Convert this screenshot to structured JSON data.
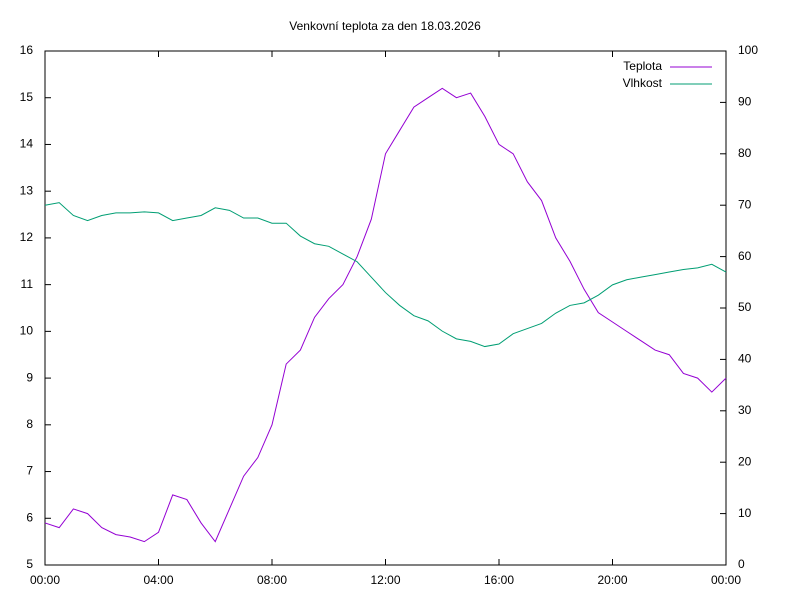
{
  "chart_data": {
    "type": "line",
    "title": "Venkovní teplota za den 18.03.2026",
    "x": [
      0,
      0.5,
      1,
      1.5,
      2,
      2.5,
      3,
      3.5,
      4,
      4.5,
      5,
      5.5,
      6,
      6.5,
      7,
      7.5,
      8,
      8.5,
      9,
      9.5,
      10,
      10.5,
      11,
      11.5,
      12,
      12.5,
      13,
      13.5,
      14,
      14.5,
      15,
      15.5,
      16,
      16.5,
      17,
      17.5,
      18,
      18.5,
      19,
      19.5,
      20,
      20.5,
      21,
      21.5,
      22,
      22.5,
      23,
      23.5,
      24
    ],
    "series": [
      {
        "name": "Teplota",
        "color": "#9400d3",
        "values": [
          5.9,
          5.8,
          6.2,
          6.1,
          5.8,
          5.65,
          5.6,
          5.5,
          5.7,
          6.5,
          6.4,
          5.9,
          5.5,
          6.2,
          6.9,
          7.3,
          8.0,
          9.3,
          9.6,
          10.3,
          10.7,
          11.0,
          11.6,
          12.4,
          13.8,
          14.3,
          14.8,
          15.0,
          15.2,
          15.0,
          15.1,
          14.6,
          14.0,
          13.8,
          13.2,
          12.8,
          12.0,
          11.5,
          10.9,
          10.4,
          10.2,
          10.0,
          9.8,
          9.6,
          9.5,
          9.1,
          9.0,
          8.7,
          9.0
        ]
      },
      {
        "name": "Vlhkost",
        "color": "#009e73",
        "axis": "y2",
        "values": [
          70,
          70.5,
          68,
          67,
          68,
          68.5,
          68.5,
          68.7,
          68.5,
          67,
          67.5,
          68,
          69.5,
          69,
          67.5,
          67.5,
          66.5,
          66.5,
          64,
          62.5,
          62,
          60.5,
          59,
          56,
          53,
          50.5,
          48.5,
          47.5,
          45.5,
          44,
          43.5,
          42.5,
          43,
          45,
          46,
          47,
          49,
          50.5,
          51,
          52.5,
          54.5,
          55.5,
          56,
          56.5,
          57,
          57.5,
          57.8,
          58.5,
          57
        ]
      }
    ],
    "xlim": [
      0,
      24
    ],
    "xticks": [
      {
        "value": 0,
        "label": "00:00"
      },
      {
        "value": 4,
        "label": "04:00"
      },
      {
        "value": 8,
        "label": "08:00"
      },
      {
        "value": 12,
        "label": "12:00"
      },
      {
        "value": 16,
        "label": "16:00"
      },
      {
        "value": 20,
        "label": "20:00"
      },
      {
        "value": 24,
        "label": "00:00"
      }
    ],
    "ylim": [
      5,
      16
    ],
    "yticks": [
      5,
      6,
      7,
      8,
      9,
      10,
      11,
      12,
      13,
      14,
      15,
      16
    ],
    "y2lim": [
      0,
      100
    ],
    "y2ticks": [
      0,
      10,
      20,
      30,
      40,
      50,
      60,
      70,
      80,
      90,
      100
    ],
    "grid": false,
    "legend": "top-right"
  }
}
